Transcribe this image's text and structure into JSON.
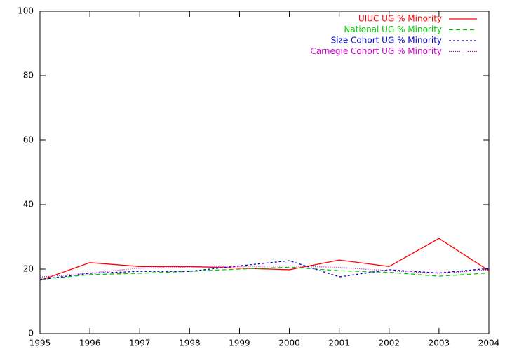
{
  "chart_data": {
    "type": "line",
    "x": [
      1995,
      1996,
      1997,
      1998,
      1999,
      2000,
      2001,
      2002,
      2003,
      2004
    ],
    "series": [
      {
        "name": "UIUC UG % Minority",
        "color": "#ff0000",
        "style": "solid",
        "values": [
          16.5,
          22,
          20.8,
          20.8,
          20.3,
          19.8,
          22.8,
          20.8,
          29.5,
          19.5
        ]
      },
      {
        "name": "National UG % Minority",
        "color": "#00cc00",
        "style": "dashed",
        "values": [
          16.8,
          18.3,
          18.7,
          19.3,
          20.0,
          20.6,
          19.5,
          19.0,
          17.8,
          18.8
        ]
      },
      {
        "name": "Size Cohort UG % Minority",
        "color": "#0000cc",
        "style": "dotted",
        "values": [
          16.8,
          18.7,
          19.3,
          19.3,
          21.0,
          22.6,
          17.6,
          19.8,
          18.8,
          20.2
        ]
      },
      {
        "name": "Carnegie Cohort UG % Minority",
        "color": "#cc00cc",
        "style": "finedotted",
        "values": [
          17.5,
          18.8,
          20.3,
          20.6,
          20.8,
          21.0,
          20.5,
          19.5,
          18.7,
          19.8
        ]
      }
    ],
    "xlim": [
      1995,
      2004
    ],
    "xticks": [
      1995,
      1996,
      1997,
      1998,
      1999,
      2000,
      2001,
      2002,
      2003,
      2004
    ],
    "ylim": [
      0,
      100
    ],
    "yticks": [
      0,
      20,
      40,
      60,
      80,
      100
    ],
    "legend": "top-right"
  }
}
